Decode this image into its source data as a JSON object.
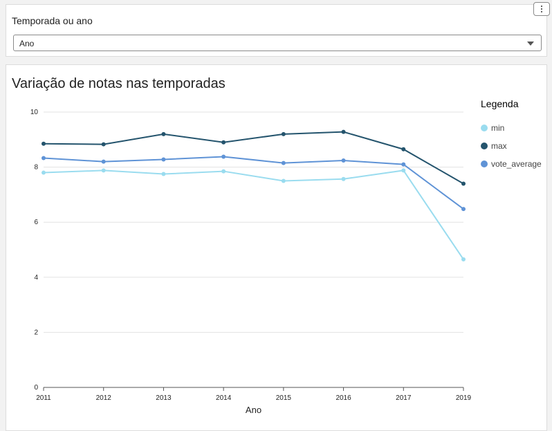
{
  "filter": {
    "label": "Temporada ou ano",
    "selected": "Ano"
  },
  "chart_data": {
    "type": "line",
    "title": "Variação de notas nas temporadas",
    "xlabel": "Ano",
    "ylabel": "",
    "categories": [
      "2011",
      "2012",
      "2013",
      "2014",
      "2015",
      "2016",
      "2017",
      "2019"
    ],
    "ylim": [
      0,
      10
    ],
    "yticks": [
      0,
      2,
      4,
      6,
      8,
      10
    ],
    "grid": true,
    "legend_title": "Legenda",
    "legend_position": "right",
    "series": [
      {
        "name": "min",
        "color": "#9adcef",
        "values": [
          7.8,
          7.88,
          7.75,
          7.85,
          7.5,
          7.57,
          7.88,
          4.65
        ]
      },
      {
        "name": "max",
        "color": "#24546d",
        "values": [
          8.85,
          8.83,
          9.2,
          8.9,
          9.2,
          9.28,
          8.65,
          7.4
        ]
      },
      {
        "name": "vote_average",
        "color": "#5f93d6",
        "values": [
          8.33,
          8.2,
          8.28,
          8.38,
          8.15,
          8.24,
          8.1,
          6.48
        ]
      }
    ]
  }
}
